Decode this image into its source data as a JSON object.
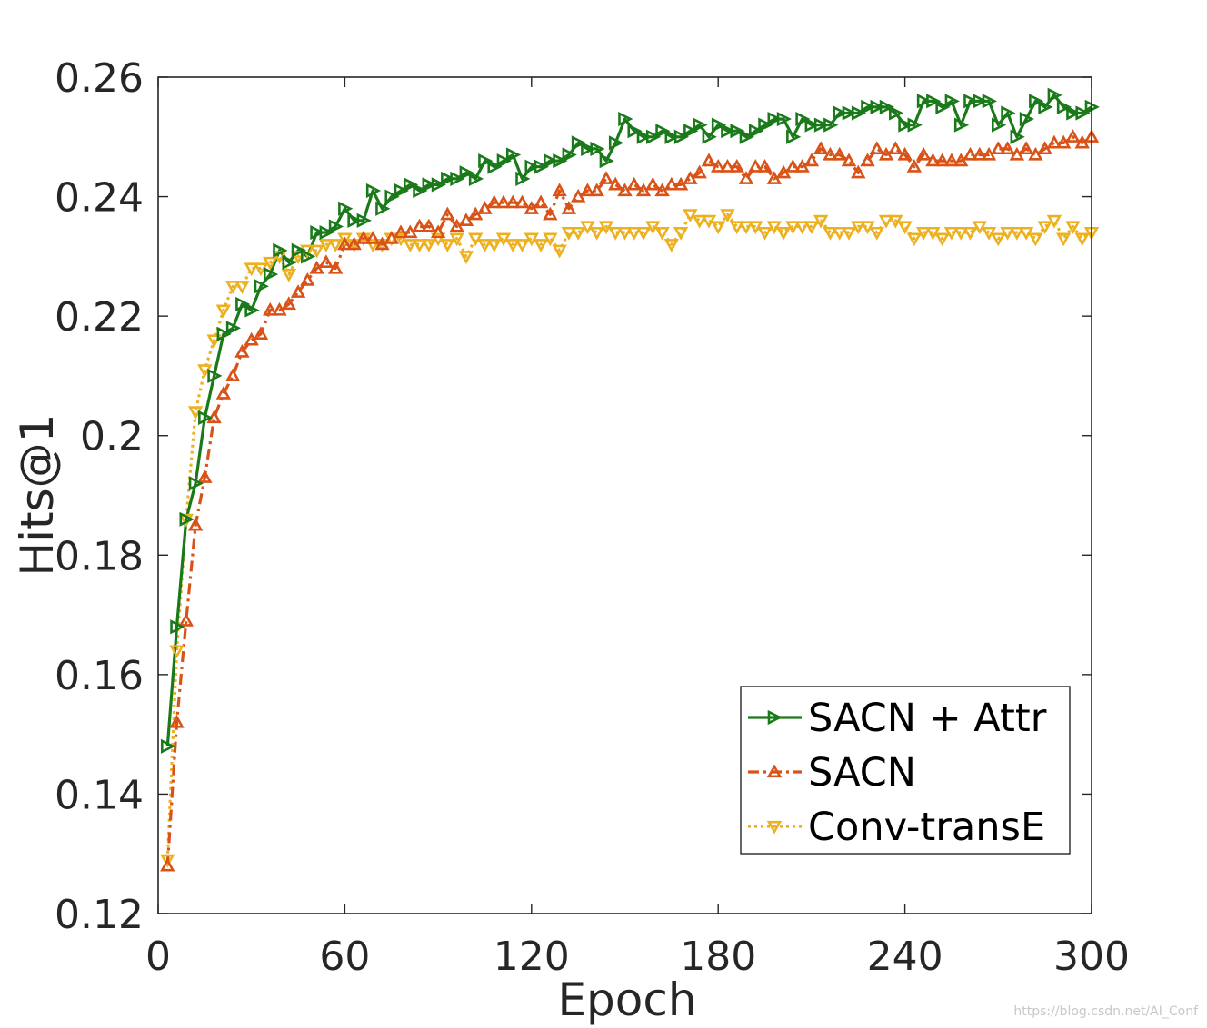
{
  "chart_data": {
    "type": "line",
    "xlabel": "Epoch",
    "ylabel": "Hits@1",
    "xlim": [
      0,
      300
    ],
    "ylim": [
      0.12,
      0.26
    ],
    "xticks": [
      "0",
      "60",
      "120",
      "180",
      "240",
      "300"
    ],
    "yticks": [
      "0.12",
      "0.14",
      "0.16",
      "0.18",
      "0.2",
      "0.22",
      "0.24",
      "0.26"
    ],
    "xtick_values": [
      0,
      60,
      120,
      180,
      240,
      300
    ],
    "ytick_values": [
      0.12,
      0.14,
      0.16,
      0.18,
      0.2,
      0.22,
      0.24,
      0.26
    ],
    "grid": false,
    "legend_position": "bottom-right",
    "x": [
      3,
      6,
      9,
      12,
      15,
      18,
      21,
      24,
      27,
      30,
      33,
      36,
      39,
      42,
      45,
      48,
      51,
      54,
      57,
      60,
      63,
      66,
      69,
      72,
      75,
      78,
      81,
      84,
      87,
      90,
      93,
      96,
      99,
      102,
      105,
      108,
      111,
      114,
      117,
      120,
      123,
      126,
      129,
      132,
      135,
      138,
      141,
      144,
      147,
      150,
      153,
      156,
      159,
      162,
      165,
      168,
      171,
      174,
      177,
      180,
      183,
      186,
      189,
      192,
      195,
      198,
      201,
      204,
      207,
      210,
      213,
      216,
      219,
      222,
      225,
      228,
      231,
      234,
      237,
      240,
      243,
      246,
      249,
      252,
      255,
      258,
      261,
      264,
      267,
      270,
      273,
      276,
      279,
      282,
      285,
      288,
      291,
      294,
      297,
      300
    ],
    "series": [
      {
        "name": "SACN + Attr",
        "color": "#1a7a1a",
        "line_style": "solid",
        "marker": "triangle-right",
        "values": [
          0.148,
          0.168,
          0.186,
          0.192,
          0.203,
          0.21,
          0.217,
          0.218,
          0.222,
          0.221,
          0.225,
          0.227,
          0.231,
          0.229,
          0.231,
          0.23,
          0.234,
          0.234,
          0.235,
          0.238,
          0.236,
          0.236,
          0.241,
          0.238,
          0.24,
          0.241,
          0.242,
          0.241,
          0.242,
          0.242,
          0.243,
          0.243,
          0.244,
          0.243,
          0.246,
          0.245,
          0.246,
          0.247,
          0.243,
          0.245,
          0.245,
          0.246,
          0.246,
          0.247,
          0.249,
          0.248,
          0.248,
          0.246,
          0.249,
          0.253,
          0.251,
          0.25,
          0.25,
          0.251,
          0.25,
          0.25,
          0.251,
          0.252,
          0.25,
          0.252,
          0.251,
          0.251,
          0.25,
          0.251,
          0.252,
          0.253,
          0.253,
          0.25,
          0.253,
          0.252,
          0.252,
          0.252,
          0.254,
          0.254,
          0.254,
          0.255,
          0.255,
          0.255,
          0.254,
          0.252,
          0.252,
          0.256,
          0.256,
          0.255,
          0.256,
          0.252,
          0.256,
          0.256,
          0.256,
          0.252,
          0.254,
          0.25,
          0.253,
          0.256,
          0.255,
          0.257,
          0.255,
          0.254,
          0.254,
          0.255
        ]
      },
      {
        "name": "SACN",
        "color": "#d95319",
        "line_style": "dash-dot",
        "marker": "triangle-up",
        "values": [
          0.128,
          0.152,
          0.169,
          0.185,
          0.193,
          0.203,
          0.207,
          0.21,
          0.214,
          0.216,
          0.217,
          0.221,
          0.221,
          0.222,
          0.224,
          0.226,
          0.228,
          0.229,
          0.228,
          0.232,
          0.232,
          0.233,
          0.233,
          0.232,
          0.233,
          0.234,
          0.234,
          0.235,
          0.235,
          0.234,
          0.237,
          0.235,
          0.236,
          0.237,
          0.238,
          0.239,
          0.239,
          0.239,
          0.239,
          0.238,
          0.239,
          0.237,
          0.241,
          0.238,
          0.24,
          0.241,
          0.241,
          0.243,
          0.242,
          0.241,
          0.242,
          0.241,
          0.242,
          0.241,
          0.242,
          0.242,
          0.243,
          0.244,
          0.246,
          0.245,
          0.245,
          0.245,
          0.243,
          0.245,
          0.245,
          0.243,
          0.244,
          0.245,
          0.245,
          0.246,
          0.248,
          0.247,
          0.247,
          0.246,
          0.244,
          0.246,
          0.248,
          0.247,
          0.248,
          0.247,
          0.245,
          0.247,
          0.246,
          0.246,
          0.246,
          0.246,
          0.247,
          0.247,
          0.247,
          0.248,
          0.248,
          0.247,
          0.248,
          0.247,
          0.248,
          0.249,
          0.249,
          0.25,
          0.249,
          0.25
        ]
      },
      {
        "name": "Conv-transE",
        "color": "#edb120",
        "line_style": "dotted",
        "marker": "triangle-down",
        "values": [
          0.129,
          0.164,
          0.186,
          0.204,
          0.211,
          0.216,
          0.221,
          0.225,
          0.225,
          0.228,
          0.228,
          0.229,
          0.23,
          0.227,
          0.23,
          0.231,
          0.231,
          0.232,
          0.232,
          0.233,
          0.232,
          0.233,
          0.232,
          0.232,
          0.233,
          0.233,
          0.232,
          0.232,
          0.232,
          0.233,
          0.232,
          0.233,
          0.23,
          0.233,
          0.232,
          0.232,
          0.233,
          0.232,
          0.232,
          0.233,
          0.232,
          0.233,
          0.231,
          0.234,
          0.234,
          0.235,
          0.234,
          0.235,
          0.234,
          0.234,
          0.234,
          0.234,
          0.235,
          0.234,
          0.232,
          0.234,
          0.237,
          0.236,
          0.236,
          0.235,
          0.237,
          0.235,
          0.235,
          0.235,
          0.234,
          0.235,
          0.234,
          0.235,
          0.235,
          0.235,
          0.236,
          0.234,
          0.234,
          0.234,
          0.235,
          0.235,
          0.234,
          0.236,
          0.236,
          0.235,
          0.233,
          0.234,
          0.234,
          0.233,
          0.234,
          0.234,
          0.234,
          0.235,
          0.234,
          0.233,
          0.234,
          0.234,
          0.234,
          0.233,
          0.235,
          0.236,
          0.233,
          0.235,
          0.233,
          0.234
        ]
      }
    ]
  },
  "watermark": "https://blog.csdn.net/AI_Conf"
}
